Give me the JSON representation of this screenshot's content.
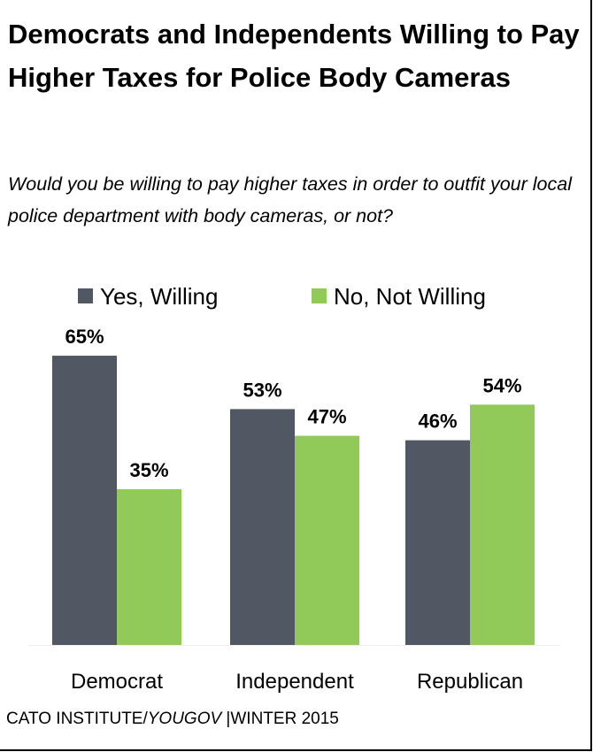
{
  "chart_data": {
    "type": "bar",
    "title": "Democrats and Independents Willing to Pay Higher Taxes for Police Body Cameras",
    "subtitle": "Would you be willing to pay higher taxes in order to outfit your local police department with body cameras, or not?",
    "categories": [
      "Democrat",
      "Independent",
      "Republican"
    ],
    "series": [
      {
        "name": "Yes, Willing",
        "values": [
          65,
          53,
          46
        ],
        "color": "#525863"
      },
      {
        "name": "No, Not Willing",
        "values": [
          35,
          47,
          54
        ],
        "color": "#92CA59"
      }
    ],
    "value_suffix": "%",
    "ylim": [
      0,
      70
    ],
    "grid": false,
    "legend_position": "top"
  },
  "footer": {
    "source": "CATO INSTITUTE/",
    "source_italic": "YOUGOV",
    "date": " |WINTER 2015"
  }
}
